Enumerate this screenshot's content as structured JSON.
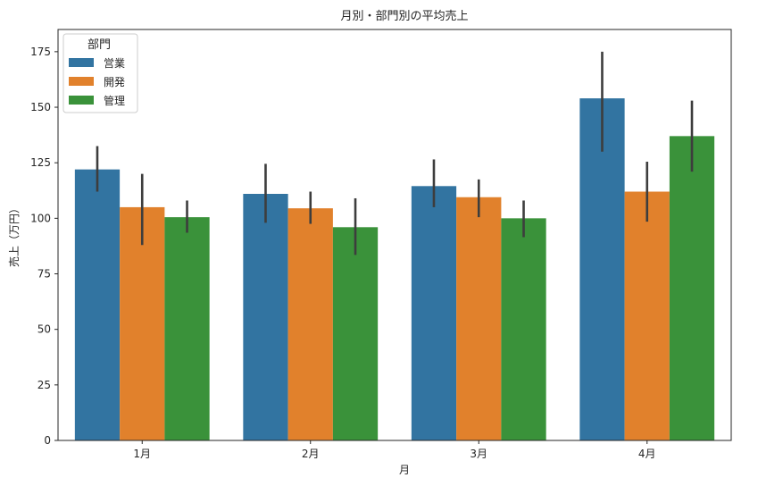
{
  "chart_data": {
    "type": "bar",
    "title": "月別・部門別の平均売上",
    "xlabel": "月",
    "ylabel": "売上（万円）",
    "categories": [
      "1月",
      "2月",
      "3月",
      "4月"
    ],
    "ylim": [
      0,
      185
    ],
    "yticks": [
      0,
      25,
      50,
      75,
      100,
      125,
      150,
      175
    ],
    "grid": false,
    "legend": {
      "title": "部門",
      "placement": "top-left"
    },
    "series": [
      {
        "name": "営業",
        "color": "#3274a1",
        "values": [
          122,
          111,
          114.5,
          154
        ],
        "error_low": [
          112,
          98,
          105,
          130
        ],
        "error_high": [
          132.5,
          124.5,
          126.5,
          175
        ]
      },
      {
        "name": "開発",
        "color": "#e1812c",
        "values": [
          105,
          104.5,
          109.5,
          112
        ],
        "error_low": [
          88,
          97.5,
          100.5,
          98.5
        ],
        "error_high": [
          120,
          112,
          117.5,
          125.5
        ]
      },
      {
        "name": "管理",
        "color": "#3a923a",
        "values": [
          100.5,
          96,
          100,
          137
        ],
        "error_low": [
          93.5,
          83.5,
          91.5,
          121
        ],
        "error_high": [
          108,
          109,
          108,
          153
        ]
      }
    ]
  }
}
